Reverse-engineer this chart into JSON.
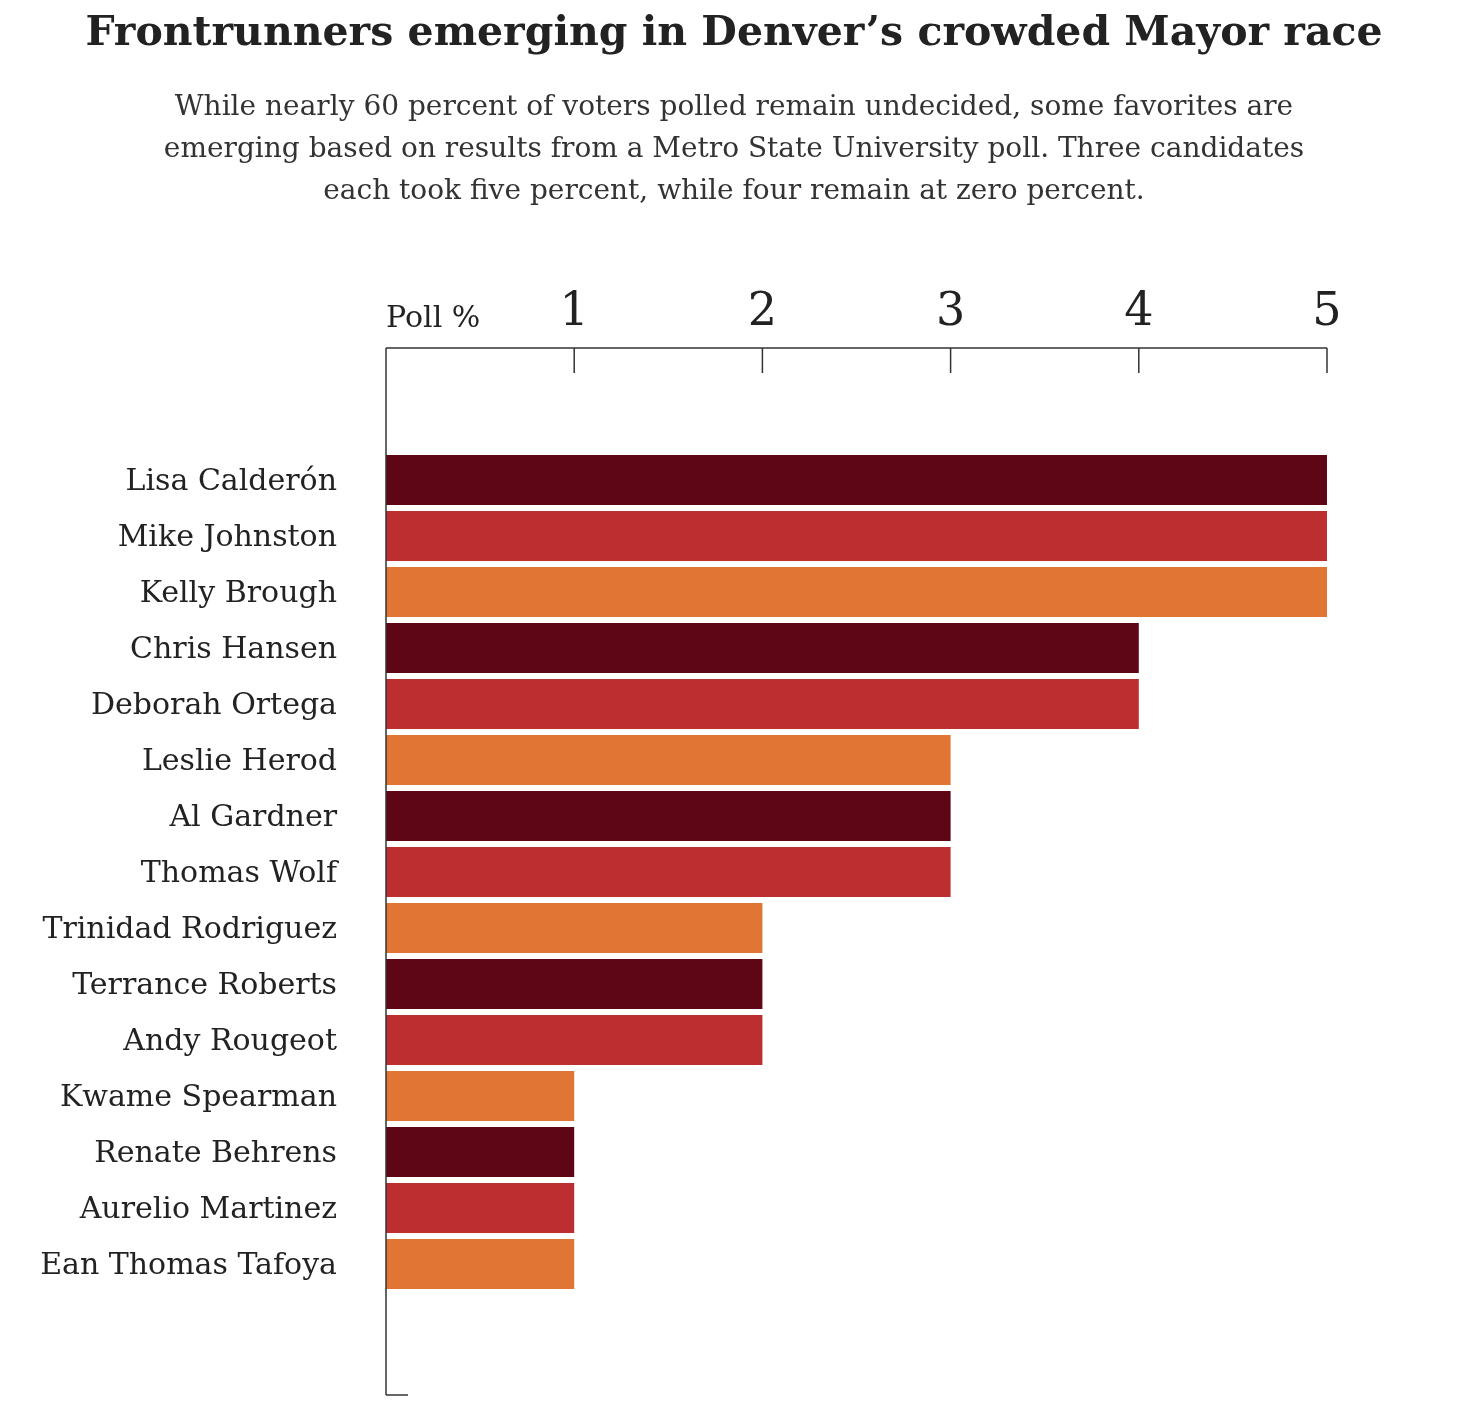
{
  "chart_data": {
    "type": "bar",
    "orientation": "horizontal",
    "title": "Frontrunners emerging in Denver’s crowded Mayor race",
    "subtitle": "While nearly 60 percent of voters polled remain undecided, some favorites are emerging based on results from a Metro State University poll. Three candidates each took five percent, while four remain at zero percent.",
    "xlabel": "Poll %",
    "categories": [
      "Lisa Calderón",
      "Mike Johnston",
      "Kelly Brough",
      "Chris Hansen",
      "Deborah Ortega",
      "Leslie Herod",
      "Al Gardner",
      "Thomas Wolf",
      "Trinidad Rodriguez",
      "Terrance Roberts",
      "Andy Rougeot",
      "Kwame Spearman",
      "Renate Behrens",
      "Aurelio Martinez",
      "Ean Thomas Tafoya"
    ],
    "values": [
      5,
      5,
      5,
      4,
      4,
      3,
      3,
      3,
      2,
      2,
      2,
      1,
      1,
      1,
      1
    ],
    "colors": [
      "#5f0616",
      "#bd2e30",
      "#e07534",
      "#5f0616",
      "#bd2e30",
      "#e07534",
      "#5f0616",
      "#bd2e30",
      "#e07534",
      "#5f0616",
      "#bd2e30",
      "#e07534",
      "#5f0616",
      "#bd2e30",
      "#e07534"
    ],
    "xlim": [
      0,
      5
    ],
    "xticks": [
      1,
      2,
      3,
      4,
      5
    ],
    "grid": false
  }
}
